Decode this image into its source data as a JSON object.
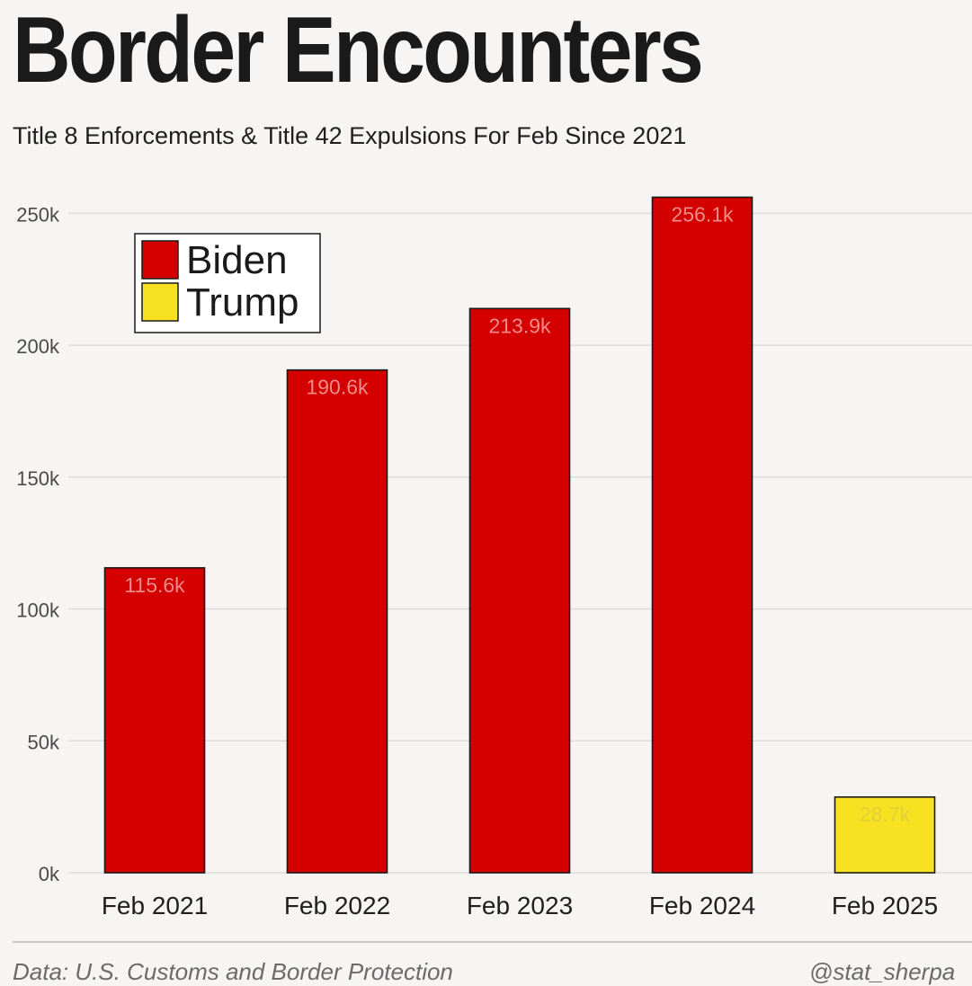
{
  "header": {
    "title": "Border Encounters",
    "subtitle": "Title 8 Enforcements & Title 42 Expulsions For Feb Since 2021"
  },
  "footer": {
    "source": "Data: U.S. Customs and Border Protection",
    "handle": "@stat_sherpa"
  },
  "chart_data": {
    "type": "bar",
    "title": "Border Encounters",
    "subtitle": "Title 8 Enforcements & Title 42 Expulsions For Feb Since 2021",
    "categories": [
      "Feb 2021",
      "Feb 2022",
      "Feb 2023",
      "Feb 2024",
      "Feb 2025"
    ],
    "values": [
      115600,
      190600,
      213900,
      256100,
      28700
    ],
    "data_labels": [
      "115.6k",
      "190.6k",
      "213.9k",
      "256.1k",
      "28.7k"
    ],
    "groups": [
      "Biden",
      "Biden",
      "Biden",
      "Biden",
      "Trump"
    ],
    "ylim": [
      0,
      260000
    ],
    "yticks": [
      0,
      50000,
      100000,
      150000,
      200000,
      250000
    ],
    "ytick_labels": [
      "0k",
      "50k",
      "100k",
      "150k",
      "200k",
      "250k"
    ],
    "xlabel": "",
    "ylabel": "",
    "grid": true,
    "legend": {
      "placement": "top-left",
      "entries": [
        {
          "name": "Biden",
          "color": "#d40000"
        },
        {
          "name": "Trump",
          "color": "#f7e121"
        }
      ]
    },
    "colors": {
      "Biden": "#d40000",
      "Trump": "#f7e121",
      "Biden_label": "#f08a8a",
      "Trump_label": "#e0cf3a"
    }
  }
}
